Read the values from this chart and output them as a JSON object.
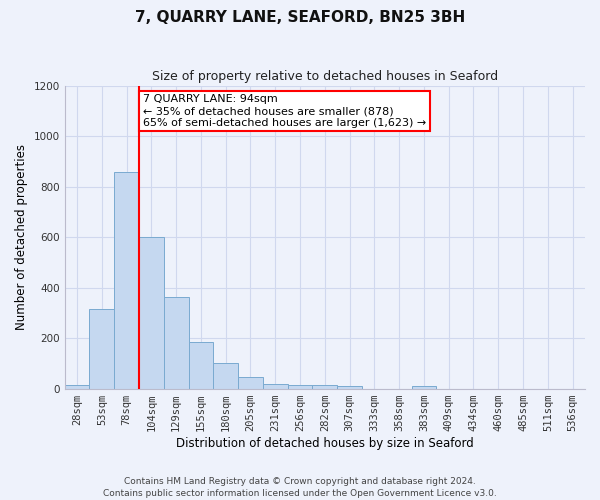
{
  "title": "7, QUARRY LANE, SEAFORD, BN25 3BH",
  "subtitle": "Size of property relative to detached houses in Seaford",
  "xlabel": "Distribution of detached houses by size in Seaford",
  "ylabel": "Number of detached properties",
  "footer1": "Contains HM Land Registry data © Crown copyright and database right 2024.",
  "footer2": "Contains public sector information licensed under the Open Government Licence v3.0.",
  "categories": [
    "28sqm",
    "53sqm",
    "78sqm",
    "104sqm",
    "129sqm",
    "155sqm",
    "180sqm",
    "205sqm",
    "231sqm",
    "256sqm",
    "282sqm",
    "307sqm",
    "333sqm",
    "358sqm",
    "383sqm",
    "409sqm",
    "434sqm",
    "460sqm",
    "485sqm",
    "511sqm",
    "536sqm"
  ],
  "values": [
    15,
    315,
    860,
    600,
    365,
    185,
    105,
    48,
    22,
    18,
    18,
    12,
    0,
    0,
    12,
    0,
    0,
    0,
    0,
    0,
    0
  ],
  "bar_color": "#c5d8f0",
  "bar_edge_color": "#7aaad0",
  "vline_x": 2.5,
  "vline_color": "red",
  "annotation_line1": "7 QUARRY LANE: 94sqm",
  "annotation_line2": "← 35% of detached houses are smaller (878)",
  "annotation_line3": "65% of semi-detached houses are larger (1,623) →",
  "annotation_box_facecolor": "white",
  "annotation_box_edge": "red",
  "ylim": [
    0,
    1200
  ],
  "yticks": [
    0,
    200,
    400,
    600,
    800,
    1000,
    1200
  ],
  "background_color": "#eef2fb",
  "grid_color": "#d0d8ee",
  "title_fontsize": 11,
  "subtitle_fontsize": 9,
  "axis_label_fontsize": 8.5,
  "tick_fontsize": 7.5,
  "footer_fontsize": 6.5,
  "annotation_fontsize": 8
}
